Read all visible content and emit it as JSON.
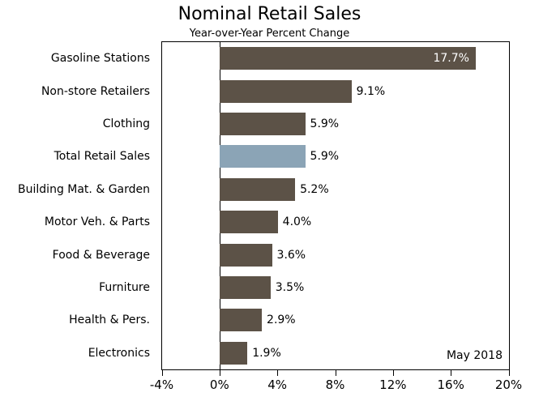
{
  "page": {
    "background": "#ffffff"
  },
  "chart_data": {
    "type": "bar",
    "orientation": "horizontal",
    "title": "Nominal Retail Sales",
    "subtitle": "Year-over-Year Percent Change",
    "annotation": "May 2018",
    "categories": [
      "Gasoline Stations",
      "Non-store Retailers",
      "Clothing",
      "Total Retail Sales",
      "Building Mat. & Garden",
      "Motor Veh. & Parts",
      "Food & Beverage",
      "Furniture",
      "Health & Pers.",
      "Electronics"
    ],
    "values": [
      17.7,
      9.1,
      5.9,
      5.9,
      5.2,
      4.0,
      3.6,
      3.5,
      2.9,
      1.9
    ],
    "value_labels": [
      "17.7%",
      "9.1%",
      "5.9%",
      "5.9%",
      "5.2%",
      "4.0%",
      "3.6%",
      "3.5%",
      "2.9%",
      "1.9%"
    ],
    "highlight_category": "Total Retail Sales",
    "highlight_index": 3,
    "inside_label_indices": [
      0
    ],
    "xlim": [
      -4,
      20
    ],
    "x_ticks": [
      -4,
      0,
      4,
      8,
      12,
      16,
      20
    ],
    "x_tick_labels": [
      "-4%",
      "0%",
      "4%",
      "8%",
      "12%",
      "16%",
      "20%"
    ],
    "grid": false,
    "legend": false,
    "colors": {
      "bar": "#5c5247",
      "highlight_bar": "#8ba4b6",
      "value_label_outside": "#000000",
      "value_label_inside": "#ffffff",
      "axis_frame": "#000000",
      "text": "#000000"
    }
  }
}
